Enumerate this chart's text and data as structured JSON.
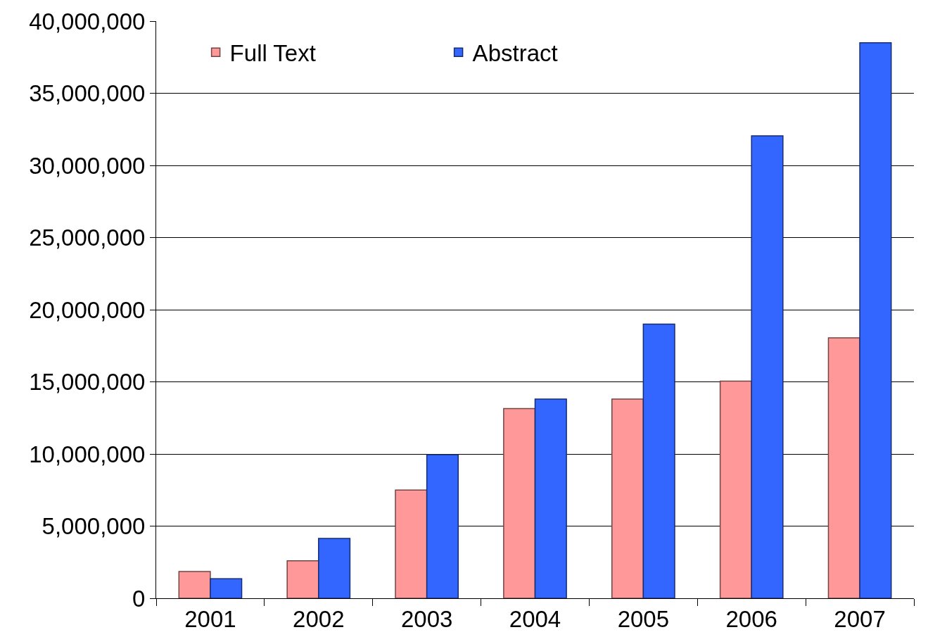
{
  "chart_data": {
    "type": "bar",
    "categories": [
      "2001",
      "2002",
      "2003",
      "2004",
      "2005",
      "2006",
      "2007"
    ],
    "series": [
      {
        "name": "Full Text",
        "color": "#ff9999",
        "values": [
          1850000.0,
          2600000.0,
          7500000.0,
          13150000.0,
          13800000.0,
          15050000.0,
          18050000.0
        ]
      },
      {
        "name": "Abstract",
        "color": "#3366ff",
        "values": [
          1350000.0,
          4150000.0,
          9950000.0,
          13800000.0,
          19000000.0,
          32050000.0,
          38500000.0
        ]
      }
    ],
    "ylim": [
      0,
      40000000
    ],
    "yticks": [
      0,
      {
        "value": 5000000,
        "label": "5,000,000"
      },
      {
        "value": 10000000,
        "label": "10,000,000"
      },
      {
        "value": 15000000,
        "label": "15,000,000"
      },
      {
        "value": 20000000,
        "label": "20,000,000"
      },
      {
        "value": 25000000,
        "label": "25,000,000"
      },
      {
        "value": 30000000,
        "label": "30,000,000"
      },
      {
        "value": 35000000,
        "label": "35,000,000"
      },
      {
        "value": 40000000,
        "label": "40,000,000"
      }
    ],
    "grid": "y",
    "legend": "top left"
  }
}
